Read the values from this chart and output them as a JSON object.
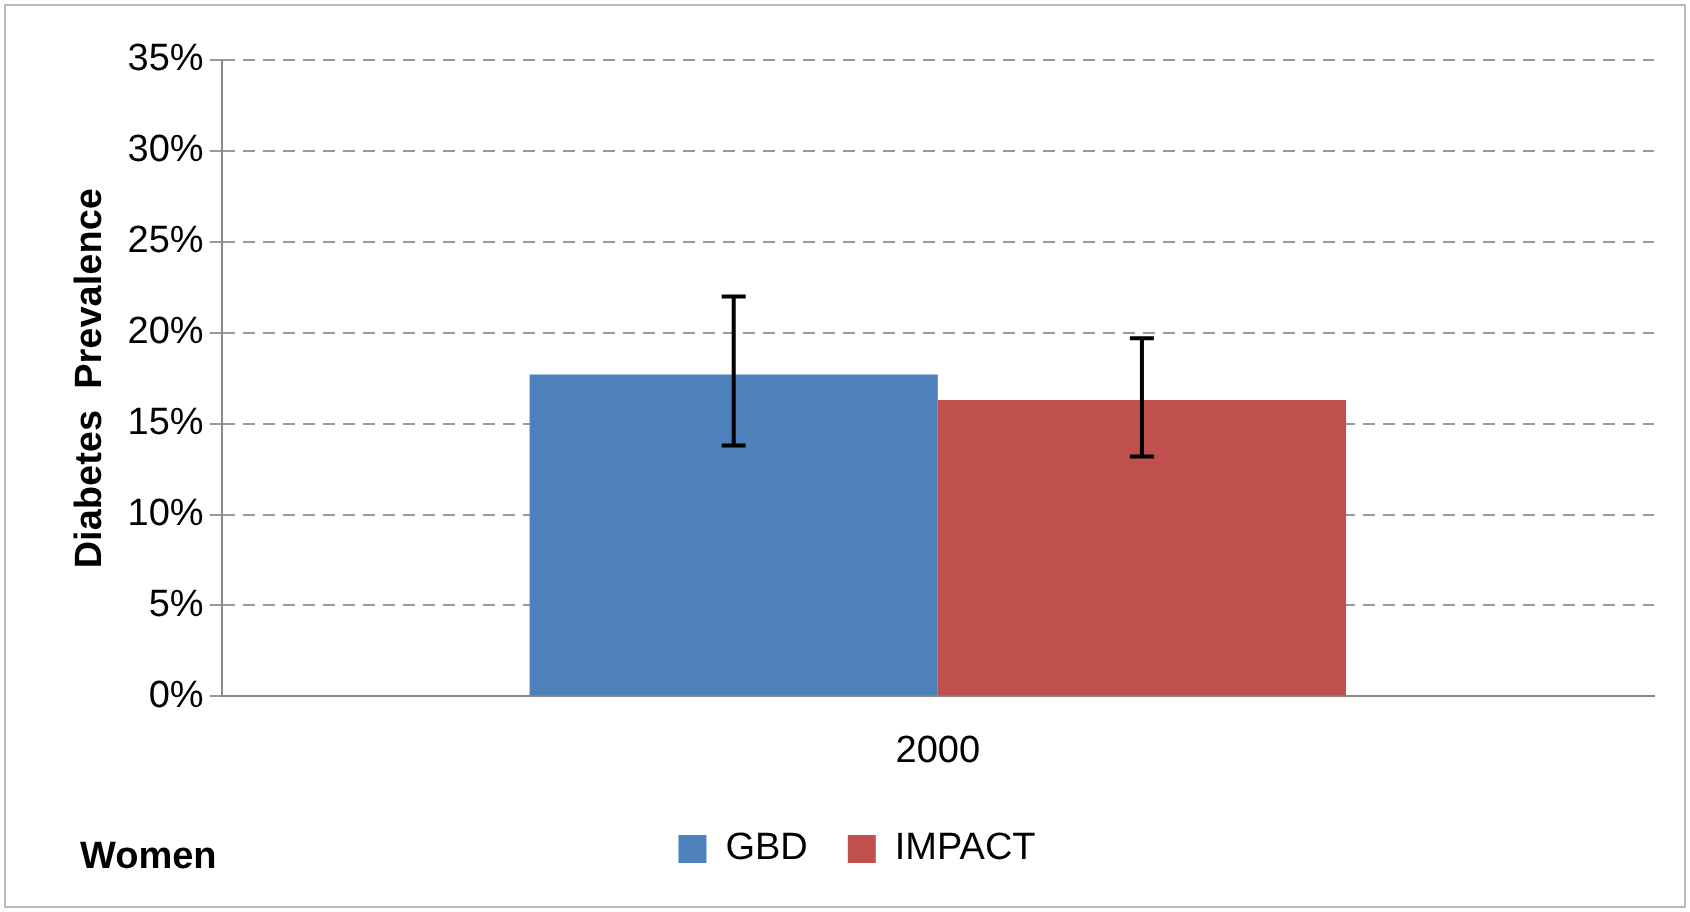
{
  "chart_data": {
    "type": "bar",
    "ylabel": "Diabetes  Prevalence",
    "categories": [
      "2000"
    ],
    "series": [
      {
        "name": "GBD",
        "color": "#4f81bd",
        "values": [
          17.7
        ],
        "errors": [
          [
            13.8,
            22.0
          ]
        ]
      },
      {
        "name": "IMPACT",
        "color": "#c0504d",
        "values": [
          16.3
        ],
        "errors": [
          [
            13.2,
            19.7
          ]
        ]
      }
    ],
    "ylim": [
      0,
      35
    ],
    "yticks": [
      {
        "value": 0,
        "label": "0%"
      },
      {
        "value": 5,
        "label": "5%"
      },
      {
        "value": 10,
        "label": "10%"
      },
      {
        "value": 15,
        "label": "15%"
      },
      {
        "value": 20,
        "label": "20%"
      },
      {
        "value": 25,
        "label": "25%"
      },
      {
        "value": 30,
        "label": "30%"
      },
      {
        "value": 35,
        "label": "35%"
      }
    ],
    "grid": "y",
    "legend": "bottom",
    "annotations": [
      "Women"
    ]
  }
}
